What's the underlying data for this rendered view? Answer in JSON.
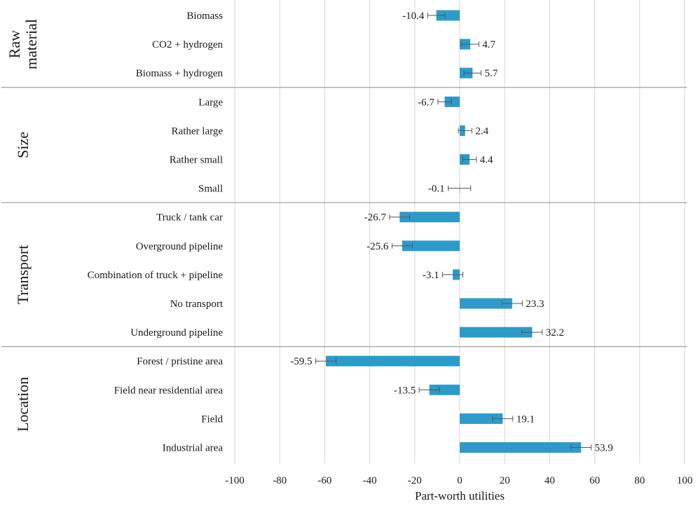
{
  "chart_data": {
    "type": "bar",
    "orientation": "horizontal",
    "xlabel": "Part-worth utilities",
    "xlim": [
      -100,
      100
    ],
    "xticks": [
      -100,
      -80,
      -60,
      -40,
      -20,
      0,
      20,
      40,
      60,
      80,
      100
    ],
    "xtick_labels": [
      "-100",
      "-80",
      "-60",
      "-40",
      "-20",
      "0",
      "20",
      "40",
      "60",
      "80",
      "100"
    ],
    "bar_color": "#2e9ac8",
    "error_color": "#555555",
    "grid": true,
    "groups": [
      {
        "name": "Raw material",
        "label_lines": [
          "Raw",
          "material"
        ],
        "items": [
          {
            "label": "Biomass",
            "value": -10.4,
            "value_label": "-10.4",
            "err": 3.8
          },
          {
            "label": "CO2 + hydrogen",
            "value": 4.7,
            "value_label": "4.7",
            "err": 3.8
          },
          {
            "label": "Biomass + hydrogen",
            "value": 5.7,
            "value_label": "5.7",
            "err": 3.8
          }
        ]
      },
      {
        "name": "Size",
        "label_lines": [
          "Size"
        ],
        "items": [
          {
            "label": "Large",
            "value": -6.7,
            "value_label": "-6.7",
            "err": 3.0
          },
          {
            "label": "Rather large",
            "value": 2.4,
            "value_label": "2.4",
            "err": 3.0
          },
          {
            "label": "Rather small",
            "value": 4.4,
            "value_label": "4.4",
            "err": 3.0
          },
          {
            "label": "Small",
            "value": -0.1,
            "value_label": "-0.1",
            "err": 5.0
          }
        ]
      },
      {
        "name": "Transport",
        "label_lines": [
          "Transport"
        ],
        "items": [
          {
            "label": "Truck / tank car",
            "value": -26.7,
            "value_label": "-26.7",
            "err": 4.5
          },
          {
            "label": "Overground pipeline",
            "value": -25.6,
            "value_label": "-25.6",
            "err": 4.5
          },
          {
            "label": "Combination of truck + pipeline",
            "value": -3.1,
            "value_label": "-3.1",
            "err": 4.5
          },
          {
            "label": "No transport",
            "value": 23.3,
            "value_label": "23.3",
            "err": 4.5
          },
          {
            "label": "Underground pipeline",
            "value": 32.2,
            "value_label": "32.2",
            "err": 4.5
          }
        ]
      },
      {
        "name": "Location",
        "label_lines": [
          "Location"
        ],
        "items": [
          {
            "label": "Forest / pristine area",
            "value": -59.5,
            "value_label": "-59.5",
            "err": 4.5
          },
          {
            "label": "Field near residential area",
            "value": -13.5,
            "value_label": "-13.5",
            "err": 4.5
          },
          {
            "label": "Field",
            "value": 19.1,
            "value_label": "19.1",
            "err": 4.5
          },
          {
            "label": "Industrial area",
            "value": 53.9,
            "value_label": "53.9",
            "err": 4.5
          }
        ]
      }
    ]
  }
}
